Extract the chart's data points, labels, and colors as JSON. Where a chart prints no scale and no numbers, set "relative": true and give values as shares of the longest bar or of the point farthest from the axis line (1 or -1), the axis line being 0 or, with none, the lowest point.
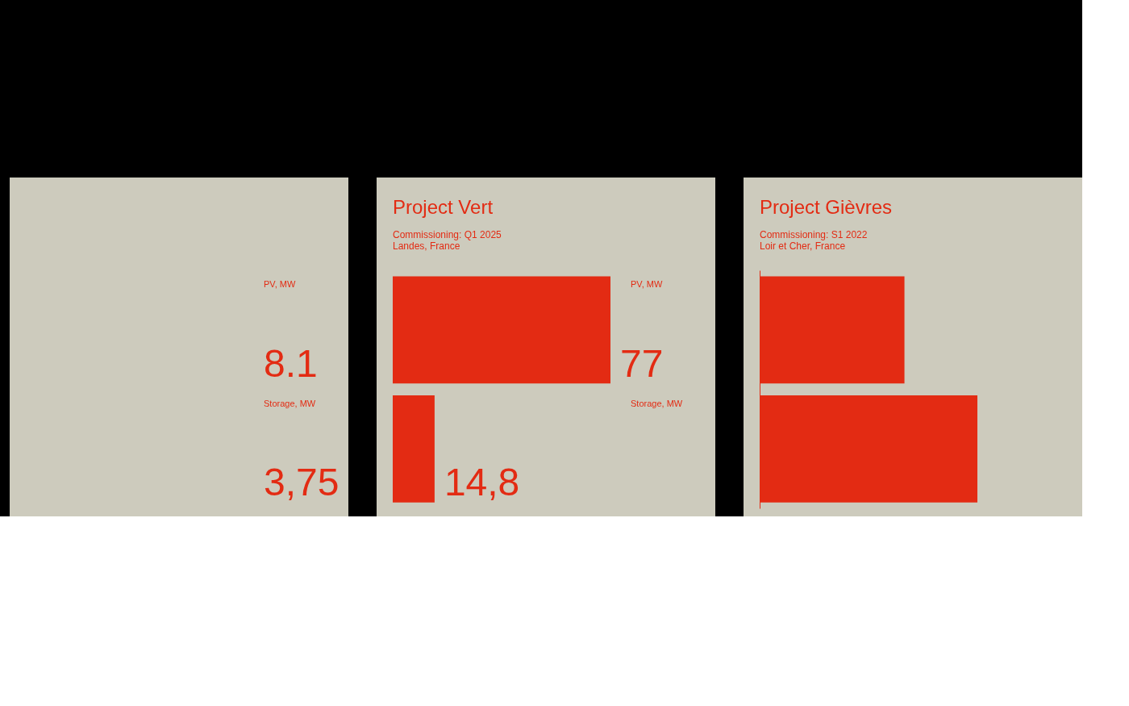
{
  "chart_data": [
    {
      "type": "other",
      "color": "#e32b13",
      "annotations": [
        "PV, MW",
        "8.1",
        "Storage, MW",
        "3,75"
      ]
    },
    {
      "type": "bar",
      "orientation": "horizontal",
      "title": "Project Vert",
      "subtitle": "Commissioning: Q1 2025\nLandes, France",
      "color": "#e32b13",
      "categories": [
        "PV, MW",
        "Storage, MW"
      ],
      "values": [
        77,
        14.8
      ],
      "value_labels": [
        "77",
        "14,8"
      ]
    },
    {
      "type": "bar",
      "orientation": "horizontal",
      "relative": true,
      "title": "Project Gièvres",
      "subtitle": "Commissioning: S1 2022\nLoir et Cher, France",
      "color": "#e32b13",
      "categories": [
        null,
        null
      ],
      "values": [
        0.665,
        1
      ]
    }
  ]
}
